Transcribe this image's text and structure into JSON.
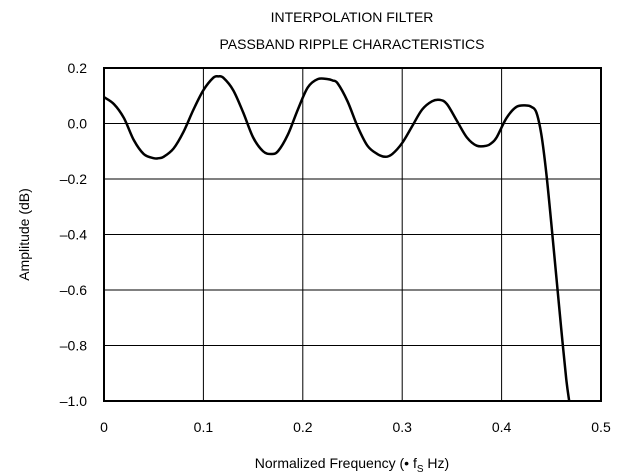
{
  "chart_data": {
    "type": "line",
    "title": "INTERPOLATION FILTER",
    "subtitle": "PASSBAND RIPPLE CHARACTERISTICS",
    "xlabel_prefix": "Normalized Frequency (• f",
    "xlabel_sub": "S",
    "xlabel_suffix": " Hz)",
    "ylabel": "Amplitude (dB)",
    "xlim": [
      0,
      0.5
    ],
    "ylim": [
      -1.0,
      0.2
    ],
    "grid": true,
    "xticks": [
      0,
      0.1,
      0.2,
      0.3,
      0.4,
      0.5
    ],
    "xtick_labels": [
      "0",
      "0.1",
      "0.2",
      "0.3",
      "0.4",
      "0.5"
    ],
    "yticks": [
      0.2,
      0.0,
      -0.2,
      -0.4,
      -0.6,
      -0.8,
      -1.0
    ],
    "ytick_labels": [
      "0.2",
      "0.0",
      "–0.2",
      "–0.4",
      "–0.6",
      "–0.8",
      "–1.0"
    ],
    "series": [
      {
        "x": [
          0,
          0.01,
          0.02,
          0.03,
          0.04,
          0.05,
          0.055,
          0.06,
          0.07,
          0.08,
          0.09,
          0.1,
          0.11,
          0.115,
          0.12,
          0.13,
          0.14,
          0.15,
          0.16,
          0.168,
          0.175,
          0.185,
          0.195,
          0.205,
          0.215,
          0.225,
          0.23,
          0.235,
          0.245,
          0.255,
          0.265,
          0.275,
          0.283,
          0.29,
          0.3,
          0.31,
          0.32,
          0.33,
          0.338,
          0.345,
          0.355,
          0.365,
          0.375,
          0.385,
          0.39,
          0.395,
          0.405,
          0.415,
          0.425,
          0.43,
          0.435,
          0.44,
          0.445,
          0.45,
          0.455,
          0.46,
          0.465,
          0.468
        ],
        "y": [
          0.095,
          0.07,
          0.02,
          -0.06,
          -0.11,
          -0.125,
          -0.125,
          -0.12,
          -0.09,
          -0.03,
          0.05,
          0.12,
          0.165,
          0.17,
          0.165,
          0.12,
          0.04,
          -0.05,
          -0.1,
          -0.11,
          -0.1,
          -0.04,
          0.05,
          0.13,
          0.16,
          0.16,
          0.155,
          0.145,
          0.08,
          -0.01,
          -0.08,
          -0.11,
          -0.12,
          -0.11,
          -0.07,
          -0.01,
          0.05,
          0.08,
          0.085,
          0.07,
          0.01,
          -0.05,
          -0.08,
          -0.08,
          -0.07,
          -0.05,
          0.02,
          0.06,
          0.065,
          0.06,
          0.04,
          -0.04,
          -0.18,
          -0.36,
          -0.55,
          -0.74,
          -0.92,
          -1.0
        ]
      }
    ]
  }
}
